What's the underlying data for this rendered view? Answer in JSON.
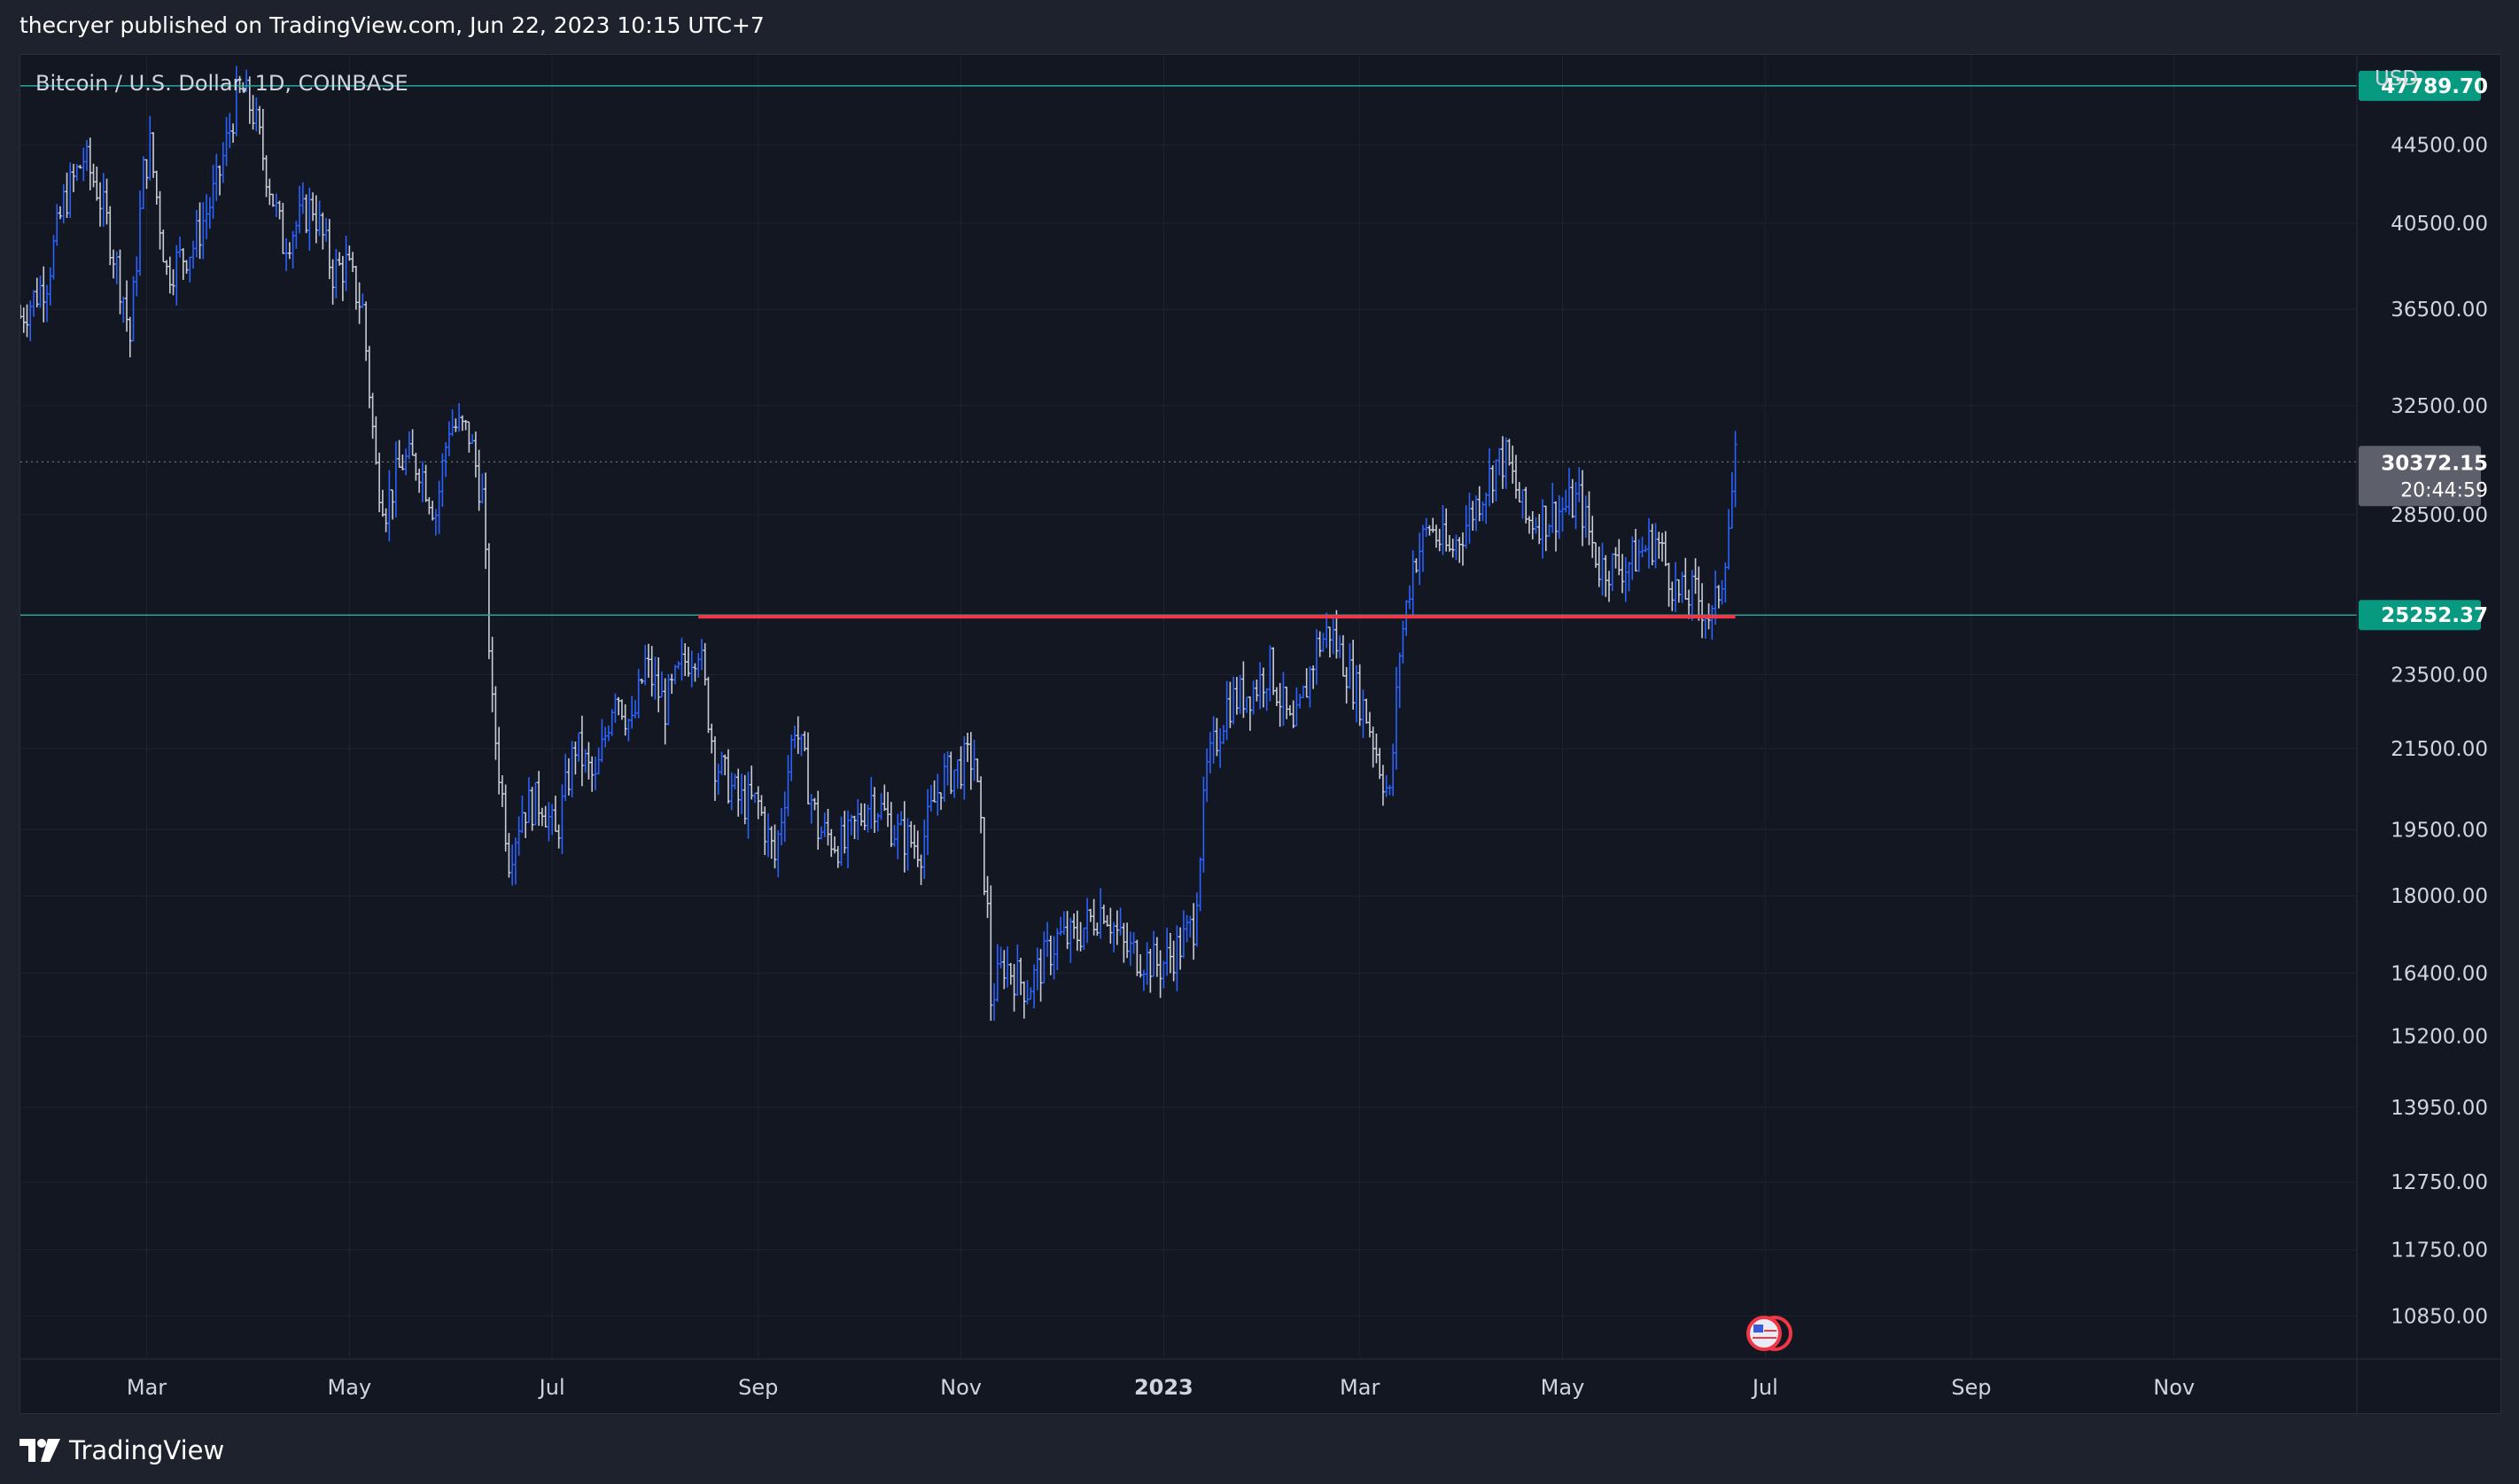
{
  "header": {
    "publish_line": "thecryer published on TradingView.com, Jun 22, 2023 10:15 UTC+7"
  },
  "symbol": {
    "title": "Bitcoin / U.S. Dollar, 1D, COINBASE",
    "currency": "USD"
  },
  "footer": {
    "brand": "TradingView",
    "logo_icon": "tradingview-logo-icon"
  },
  "colors": {
    "background": "#131722",
    "grid": "#1f2330",
    "up_bar": "#2962ff",
    "down_bar": "#c8ccd6",
    "level_line": "#26a69a",
    "level_badge": "#089981",
    "support_line": "#f23645",
    "current_price_badge": "#5d606b"
  },
  "chart_data": {
    "type": "ohlc",
    "title": "Bitcoin / U.S. Dollar, 1D, COINBASE",
    "y_scale": "log",
    "ylim": [
      10300,
      49600
    ],
    "x_range": [
      "2022-01-22",
      "2023-12-26"
    ],
    "y_ticks": [
      "44500.00",
      "40500.00",
      "36500.00",
      "32500.00",
      "28500.00",
      "23500.00",
      "21500.00",
      "19500.00",
      "18000.00",
      "16400.00",
      "15200.00",
      "13950.00",
      "12750.00",
      "11750.00",
      "10850.00"
    ],
    "x_ticks": [
      {
        "label": "Mar",
        "date": "2022-03-01"
      },
      {
        "label": "May",
        "date": "2022-05-01"
      },
      {
        "label": "Jul",
        "date": "2022-07-01"
      },
      {
        "label": "Sep",
        "date": "2022-09-01"
      },
      {
        "label": "Nov",
        "date": "2022-11-01"
      },
      {
        "label": "2023",
        "date": "2023-01-01",
        "bold": true
      },
      {
        "label": "Mar",
        "date": "2023-03-01"
      },
      {
        "label": "May",
        "date": "2023-05-01"
      },
      {
        "label": "Jul",
        "date": "2023-07-01"
      },
      {
        "label": "Sep",
        "date": "2023-09-01"
      },
      {
        "label": "Nov",
        "date": "2023-11-01"
      }
    ],
    "horizontal_levels": [
      {
        "price": 47789.7,
        "label": "47789.70"
      },
      {
        "price": 25252.37,
        "label": "25252.37"
      }
    ],
    "support_line": {
      "start_date": "2022-08-14",
      "end_date": "2023-06-22",
      "price": 25200
    },
    "last_price": {
      "price": 30372.15,
      "label": "30372.15",
      "countdown": "20:44:59"
    },
    "price_path": [
      [
        "2022-01-22",
        36200
      ],
      [
        "2022-01-26",
        37000
      ],
      [
        "2022-01-30",
        37900
      ],
      [
        "2022-02-04",
        41500
      ],
      [
        "2022-02-10",
        43800
      ],
      [
        "2022-02-14",
        42300
      ],
      [
        "2022-02-17",
        40500
      ],
      [
        "2022-02-22",
        37100
      ],
      [
        "2022-02-24",
        35200
      ],
      [
        "2022-02-28",
        43000
      ],
      [
        "2022-03-02",
        44400
      ],
      [
        "2022-03-07",
        38200
      ],
      [
        "2022-03-15",
        39400
      ],
      [
        "2022-03-22",
        42300
      ],
      [
        "2022-03-28",
        47000
      ],
      [
        "2022-03-30",
        47400
      ],
      [
        "2022-04-02",
        46300
      ],
      [
        "2022-04-06",
        43200
      ],
      [
        "2022-04-11",
        39600
      ],
      [
        "2022-04-14",
        40200
      ],
      [
        "2022-04-20",
        41400
      ],
      [
        "2022-04-26",
        38200
      ],
      [
        "2022-04-30",
        38500
      ],
      [
        "2022-05-05",
        36500
      ],
      [
        "2022-05-09",
        30100
      ],
      [
        "2022-05-12",
        28800
      ],
      [
        "2022-05-17",
        30400
      ],
      [
        "2022-05-22",
        30300
      ],
      [
        "2022-05-27",
        28600
      ],
      [
        "2022-05-31",
        31800
      ],
      [
        "2022-06-06",
        31400
      ],
      [
        "2022-06-10",
        29100
      ],
      [
        "2022-06-13",
        22500
      ],
      [
        "2022-06-18",
        18900
      ],
      [
        "2022-06-22",
        20000
      ],
      [
        "2022-06-28",
        20200
      ],
      [
        "2022-07-02",
        19300
      ],
      [
        "2022-07-08",
        21600
      ],
      [
        "2022-07-14",
        20600
      ],
      [
        "2022-07-20",
        23200
      ],
      [
        "2022-07-25",
        22000
      ],
      [
        "2022-07-29",
        23800
      ],
      [
        "2022-08-04",
        22600
      ],
      [
        "2022-08-10",
        23900
      ],
      [
        "2022-08-14",
        24400
      ],
      [
        "2022-08-19",
        21200
      ],
      [
        "2022-08-26",
        20200
      ],
      [
        "2022-09-01",
        20100
      ],
      [
        "2022-09-06",
        18800
      ],
      [
        "2022-09-12",
        22200
      ],
      [
        "2022-09-19",
        19500
      ],
      [
        "2022-09-27",
        19100
      ],
      [
        "2022-10-05",
        20300
      ],
      [
        "2022-10-13",
        19400
      ],
      [
        "2022-10-20",
        19100
      ],
      [
        "2022-10-26",
        20700
      ],
      [
        "2022-11-05",
        21300
      ],
      [
        "2022-11-09",
        17600
      ],
      [
        "2022-11-10",
        15900
      ],
      [
        "2022-11-14",
        16600
      ],
      [
        "2022-11-21",
        16100
      ],
      [
        "2022-11-30",
        17100
      ],
      [
        "2022-12-05",
        17100
      ],
      [
        "2022-12-14",
        17800
      ],
      [
        "2022-12-20",
        16900
      ],
      [
        "2022-12-31",
        16550
      ],
      [
        "2023-01-06",
        16950
      ],
      [
        "2023-01-10",
        17400
      ],
      [
        "2023-01-14",
        20900
      ],
      [
        "2023-01-20",
        22700
      ],
      [
        "2023-01-28",
        23100
      ],
      [
        "2023-02-02",
        23700
      ],
      [
        "2023-02-09",
        21800
      ],
      [
        "2023-02-16",
        24300
      ],
      [
        "2023-02-20",
        24800
      ],
      [
        "2023-02-26",
        23500
      ],
      [
        "2023-03-03",
        22400
      ],
      [
        "2023-03-10",
        20200
      ],
      [
        "2023-03-13",
        24200
      ],
      [
        "2023-03-17",
        26900
      ],
      [
        "2023-03-22",
        28100
      ],
      [
        "2023-03-28",
        27200
      ],
      [
        "2023-04-02",
        28200
      ],
      [
        "2023-04-11",
        30300
      ],
      [
        "2023-04-14",
        30500
      ],
      [
        "2023-04-20",
        28300
      ],
      [
        "2023-04-26",
        28400
      ],
      [
        "2023-05-06",
        29000
      ],
      [
        "2023-05-12",
        26800
      ],
      [
        "2023-05-20",
        26800
      ],
      [
        "2023-05-29",
        27700
      ],
      [
        "2023-06-05",
        25800
      ],
      [
        "2023-06-10",
        25900
      ],
      [
        "2023-06-15",
        25100
      ],
      [
        "2023-06-18",
        26500
      ],
      [
        "2023-06-20",
        28200
      ],
      [
        "2023-06-22",
        30372
      ]
    ]
  }
}
